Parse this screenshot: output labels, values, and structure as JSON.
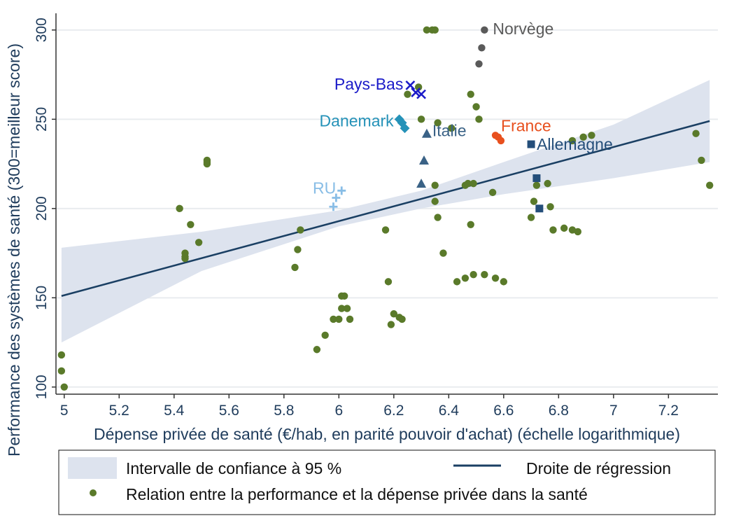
{
  "chart_data": {
    "type": "scatter",
    "title": "",
    "xlabel": "Dépense privée de santé (€/hab, en parité pouvoir d'achat) (échelle logarithmique)",
    "ylabel": "Performance des systèmes de santé (300=meilleur score)",
    "xlim": [
      4.97,
      7.38
    ],
    "ylim": [
      96,
      307
    ],
    "x_ticks": [
      "5",
      "5.2",
      "5.4",
      "5.6",
      "5.8",
      "6",
      "6.2",
      "6.4",
      "6.6",
      "6.8",
      "7",
      "7.2"
    ],
    "y_ticks": [
      "100",
      "150",
      "200",
      "250",
      "300"
    ],
    "grid": "horizontal",
    "colors": {
      "background_points": "#5a7a2a",
      "regression": "#1a3f63",
      "confidence_band": "#dde3ee",
      "norvege": "#5a5a5a",
      "pays_bas": "#1b1bc8",
      "danemark": "#2592b8",
      "france": "#e8501e",
      "italie": "#3a6286",
      "allemagne": "#244e7a",
      "ru": "#88bde6"
    },
    "regression": {
      "x": [
        4.99,
        7.35
      ],
      "y": [
        151,
        249
      ]
    },
    "confidence_band": {
      "x": [
        4.99,
        5.5,
        6.0,
        6.3,
        6.6,
        7.0,
        7.35
      ],
      "lower": [
        125,
        165,
        190,
        200,
        208,
        217,
        226
      ],
      "upper": [
        178,
        187,
        199,
        210,
        226,
        247,
        272
      ]
    },
    "series": [
      {
        "marker": "circle",
        "points": [
          [
            4.99,
            118
          ],
          [
            4.99,
            109
          ],
          [
            5.0,
            100
          ],
          [
            5.42,
            200
          ],
          [
            5.44,
            175
          ],
          [
            5.44,
            173
          ],
          [
            5.44,
            172
          ],
          [
            5.46,
            191
          ],
          [
            5.49,
            181
          ],
          [
            5.52,
            225
          ],
          [
            5.52,
            226
          ],
          [
            5.52,
            227
          ],
          [
            5.84,
            167
          ],
          [
            5.85,
            177
          ],
          [
            5.86,
            188
          ],
          [
            5.92,
            121
          ],
          [
            5.95,
            129
          ],
          [
            5.98,
            138
          ],
          [
            6.0,
            138
          ],
          [
            6.01,
            151
          ],
          [
            6.01,
            144
          ],
          [
            6.02,
            151
          ],
          [
            6.03,
            144
          ],
          [
            6.04,
            138
          ],
          [
            6.17,
            188
          ],
          [
            6.18,
            159
          ],
          [
            6.19,
            135
          ],
          [
            6.2,
            141
          ],
          [
            6.22,
            139
          ],
          [
            6.23,
            138
          ],
          [
            6.25,
            264
          ],
          [
            6.29,
            268
          ],
          [
            6.3,
            250
          ],
          [
            6.32,
            300
          ],
          [
            6.34,
            300
          ],
          [
            6.35,
            300
          ],
          [
            6.35,
            213
          ],
          [
            6.35,
            204
          ],
          [
            6.36,
            195
          ],
          [
            6.36,
            248
          ],
          [
            6.38,
            175
          ],
          [
            6.41,
            245
          ],
          [
            6.43,
            159
          ],
          [
            6.46,
            161
          ],
          [
            6.46,
            213
          ],
          [
            6.47,
            214
          ],
          [
            6.48,
            191
          ],
          [
            6.49,
            214
          ],
          [
            6.48,
            264
          ],
          [
            6.49,
            163
          ],
          [
            6.5,
            257
          ],
          [
            6.51,
            250
          ],
          [
            6.53,
            163
          ],
          [
            6.56,
            209
          ],
          [
            6.57,
            161
          ],
          [
            6.6,
            159
          ],
          [
            6.7,
            195
          ],
          [
            6.71,
            204
          ],
          [
            6.72,
            213
          ],
          [
            6.76,
            214
          ],
          [
            6.77,
            201
          ],
          [
            6.78,
            188
          ],
          [
            6.82,
            189
          ],
          [
            6.85,
            188
          ],
          [
            6.85,
            238
          ],
          [
            6.87,
            187
          ],
          [
            6.89,
            240
          ],
          [
            6.92,
            241
          ],
          [
            7.3,
            242
          ],
          [
            7.32,
            227
          ],
          [
            7.35,
            213
          ]
        ]
      },
      {
        "name": "Norvège",
        "marker": "circle",
        "color_key": "norvege",
        "points": [
          [
            6.53,
            300
          ],
          [
            6.52,
            290
          ],
          [
            6.51,
            281
          ]
        ]
      },
      {
        "name": "Pays-Bas",
        "marker": "x",
        "color_key": "pays_bas",
        "points": [
          [
            6.26,
            269
          ],
          [
            6.28,
            265
          ],
          [
            6.3,
            264
          ]
        ]
      },
      {
        "name": "Danemark",
        "marker": "diamond",
        "color_key": "danemark",
        "points": [
          [
            6.22,
            250
          ],
          [
            6.23,
            248
          ],
          [
            6.24,
            245
          ]
        ]
      },
      {
        "name": "France",
        "marker": "circle",
        "color_key": "france",
        "points": [
          [
            6.57,
            241
          ],
          [
            6.58,
            240
          ],
          [
            6.59,
            238
          ]
        ]
      },
      {
        "name": "Italie",
        "marker": "triangle",
        "color_key": "italie",
        "points": [
          [
            6.32,
            242
          ],
          [
            6.31,
            227
          ],
          [
            6.3,
            214
          ]
        ]
      },
      {
        "name": "Allemagne",
        "marker": "square",
        "color_key": "allemagne",
        "points": [
          [
            6.7,
            236
          ],
          [
            6.72,
            217
          ],
          [
            6.73,
            200
          ]
        ]
      },
      {
        "name": "RU",
        "marker": "plus",
        "color_key": "ru",
        "points": [
          [
            6.01,
            210
          ],
          [
            5.99,
            206
          ],
          [
            5.98,
            201
          ]
        ]
      }
    ],
    "legend": [
      {
        "kind": "band",
        "label": "Intervalle de confiance à 95 %"
      },
      {
        "kind": "line",
        "label": "Droite de régression"
      },
      {
        "kind": "dot",
        "label": "Relation entre la performance et la dépense privée dans la santé"
      }
    ]
  }
}
